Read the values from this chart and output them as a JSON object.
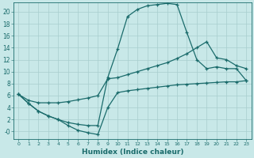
{
  "xlabel": "Humidex (Indice chaleur)",
  "bg_color": "#c8e8e8",
  "line_color": "#1a6b6b",
  "grid_color": "#a8cece",
  "xlim": [
    -0.5,
    23.5
  ],
  "ylim": [
    -1.2,
    21.5
  ],
  "yticks": [
    0,
    2,
    4,
    6,
    8,
    10,
    12,
    14,
    16,
    18,
    20
  ],
  "ytick_labels": [
    "-0",
    "2",
    "4",
    "6",
    "8",
    "10",
    "12",
    "14",
    "16",
    "18",
    "20"
  ],
  "line1_x": [
    0,
    1,
    2,
    3,
    4,
    5,
    6,
    7,
    8,
    9,
    10,
    11,
    12,
    13,
    14,
    15,
    16,
    17,
    18,
    19,
    20,
    21,
    22,
    23
  ],
  "line1_y": [
    6.2,
    4.7,
    3.4,
    2.6,
    2.0,
    1.5,
    1.2,
    1.0,
    1.0,
    9.0,
    13.8,
    19.2,
    20.4,
    21.0,
    21.2,
    21.4,
    21.2,
    16.5,
    12.0,
    10.5,
    10.8,
    10.5,
    10.5,
    8.5
  ],
  "line2_x": [
    0,
    1,
    2,
    3,
    4,
    5,
    6,
    7,
    8,
    9,
    10,
    11,
    12,
    13,
    14,
    15,
    16,
    17,
    18,
    19,
    20,
    21,
    22,
    23
  ],
  "line2_y": [
    6.2,
    5.2,
    4.8,
    4.8,
    4.8,
    5.0,
    5.3,
    5.6,
    6.0,
    8.8,
    9.0,
    9.5,
    10.0,
    10.5,
    11.0,
    11.5,
    12.2,
    13.0,
    14.0,
    15.0,
    12.3,
    12.0,
    11.0,
    10.5
  ],
  "line3_x": [
    0,
    1,
    2,
    3,
    4,
    5,
    6,
    7,
    8,
    9,
    10,
    11,
    12,
    13,
    14,
    15,
    16,
    17,
    18,
    19,
    20,
    21,
    22,
    23
  ],
  "line3_y": [
    6.2,
    4.7,
    3.4,
    2.6,
    2.0,
    1.0,
    0.2,
    -0.2,
    -0.5,
    4.0,
    6.5,
    6.8,
    7.0,
    7.2,
    7.4,
    7.6,
    7.8,
    7.9,
    8.0,
    8.1,
    8.2,
    8.3,
    8.3,
    8.5
  ]
}
